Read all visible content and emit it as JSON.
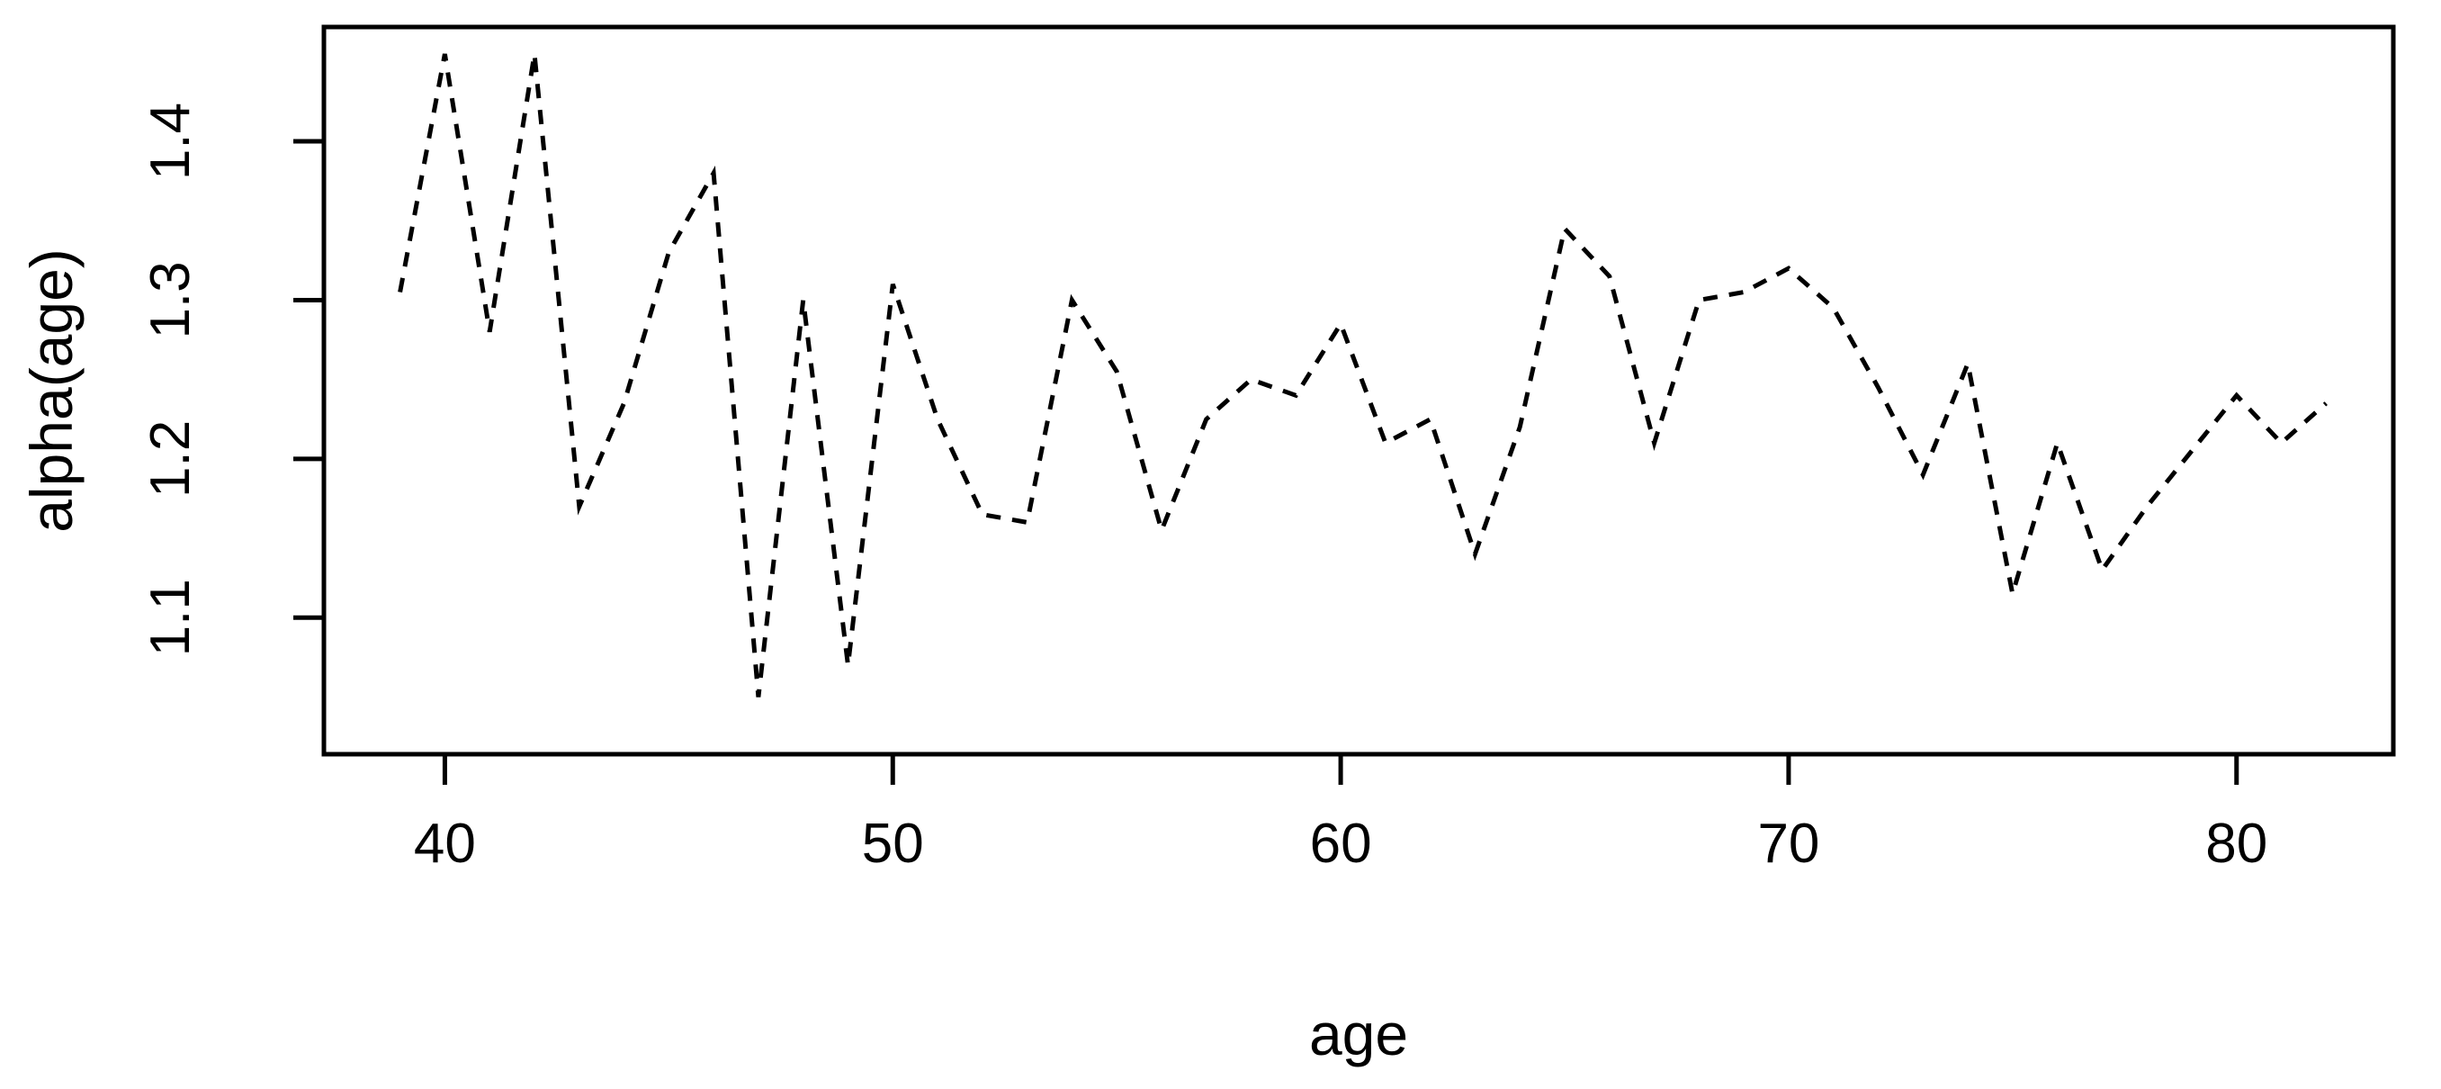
{
  "figure": {
    "background": "#ffffff",
    "line_color": "#000000",
    "text_color": "#000000",
    "line_style": "dashed"
  },
  "chart_data": {
    "type": "line",
    "title": "",
    "xlabel": "age",
    "ylabel": "alpha(age)",
    "grid": "off",
    "legend": "none",
    "line_dashed": true,
    "xlim": [
      37.3,
      83.5
    ],
    "ylim": [
      1.014,
      1.472
    ],
    "x_ticks": [
      40,
      50,
      60,
      70,
      80
    ],
    "y_ticks": [
      1.1,
      1.2,
      1.3,
      1.4
    ],
    "x": [
      39,
      40,
      41,
      42,
      43,
      44,
      45,
      46,
      47,
      48,
      49,
      50,
      51,
      52,
      53,
      54,
      55,
      56,
      57,
      58,
      59,
      60,
      61,
      62,
      63,
      64,
      65,
      66,
      67,
      68,
      69,
      70,
      71,
      72,
      73,
      74,
      75,
      76,
      77,
      78,
      79,
      80,
      81,
      82
    ],
    "y": [
      1.305,
      1.455,
      1.28,
      1.455,
      1.17,
      1.235,
      1.33,
      1.38,
      1.05,
      1.3,
      1.07,
      1.31,
      1.225,
      1.165,
      1.16,
      1.3,
      1.255,
      1.155,
      1.225,
      1.25,
      1.24,
      1.285,
      1.21,
      1.225,
      1.14,
      1.22,
      1.345,
      1.315,
      1.21,
      1.3,
      1.305,
      1.32,
      1.295,
      1.245,
      1.19,
      1.26,
      1.115,
      1.21,
      1.13,
      1.17,
      1.205,
      1.24,
      1.21,
      1.235
    ]
  }
}
